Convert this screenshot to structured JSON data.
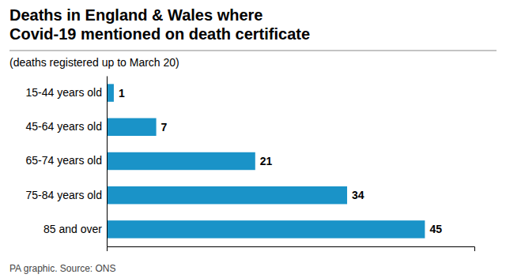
{
  "chart_data": {
    "type": "bar",
    "orientation": "horizontal",
    "title": "Deaths in England & Wales where\nCovid-19 mentioned on death certificate",
    "subtitle": "(deaths registered up to March 20)",
    "footnote": "PA graphic. Source: ONS",
    "categories": [
      "15-44 years old",
      "45-64 years old",
      "65-74 years old",
      "75-84 years old",
      "85 and over"
    ],
    "values": [
      1,
      7,
      21,
      34,
      45
    ],
    "color": "#1a93c8",
    "xlim": [
      0,
      52
    ],
    "grid": false,
    "data_labels": true,
    "tick_labels": "y"
  }
}
